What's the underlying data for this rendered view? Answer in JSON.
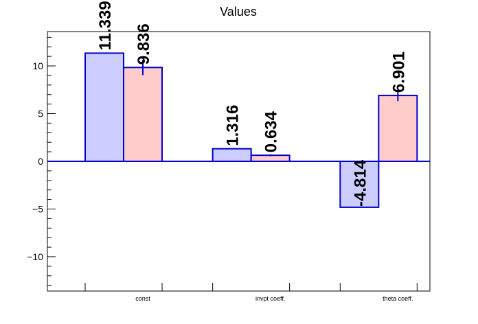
{
  "chart_data": {
    "type": "bar",
    "title": "Values",
    "categories": [
      "const",
      "invpt coeff.",
      "theta coeff."
    ],
    "series": [
      {
        "values": [
          11.339,
          1.316,
          -4.814
        ],
        "labels": [
          "11.339",
          "1.316",
          "-4.814"
        ],
        "errors": [
          0,
          0,
          0
        ],
        "fill": "#ccccff",
        "stroke": "#0000cc"
      },
      {
        "values": [
          9.836,
          0.634,
          6.901
        ],
        "labels": [
          "9.836",
          "0.634",
          "6.901"
        ],
        "errors": [
          0.8,
          0.1,
          0.6
        ],
        "fill": "#ffcccc",
        "stroke": "#0000cc"
      }
    ],
    "yticks": [
      -10,
      -5,
      0,
      5,
      10
    ],
    "ytick_labels": [
      "−10",
      "−5",
      "0",
      "5",
      "10"
    ],
    "ylim": [
      -13.6,
      13.6
    ],
    "grid": false,
    "legend": "none"
  }
}
